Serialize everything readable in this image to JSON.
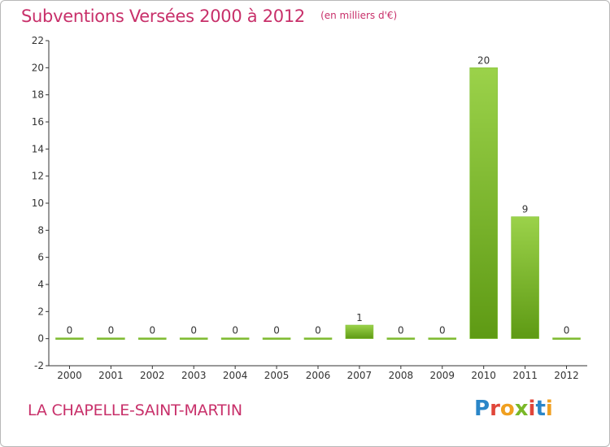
{
  "title": "Subventions Versées 2000 à 2012",
  "subtitle": "(en milliers d'€)",
  "commune": "LA CHAPELLE-SAINT-MARTIN",
  "logo": {
    "letters": [
      "P",
      "r",
      "o",
      "x",
      "i",
      "t",
      "i"
    ],
    "colors": [
      "#2a86c8",
      "#e0463a",
      "#f0a020",
      "#7ab828",
      "#e0463a",
      "#2a86c8",
      "#f0a020"
    ]
  },
  "colors": {
    "title": "#c8306a",
    "bar_light": "#9bd24a",
    "bar_dark": "#5e9a14",
    "axis": "#333333"
  },
  "chart_data": {
    "type": "bar",
    "categories": [
      "2000",
      "2001",
      "2002",
      "2003",
      "2004",
      "2005",
      "2006",
      "2007",
      "2008",
      "2009",
      "2010",
      "2011",
      "2012"
    ],
    "values": [
      0,
      0,
      0,
      0,
      0,
      0,
      0,
      1,
      0,
      0,
      20,
      9,
      0
    ],
    "data_labels": [
      "0",
      "0",
      "0",
      "0",
      "0",
      "0",
      "0",
      "1",
      "0",
      "0",
      "20",
      "9",
      "0"
    ],
    "yticks": [
      "-2",
      "0",
      "2",
      "4",
      "6",
      "8",
      "10",
      "12",
      "14",
      "16",
      "18",
      "20",
      "22"
    ],
    "ylim": [
      -2,
      22
    ],
    "grid": false,
    "legend": "none"
  }
}
